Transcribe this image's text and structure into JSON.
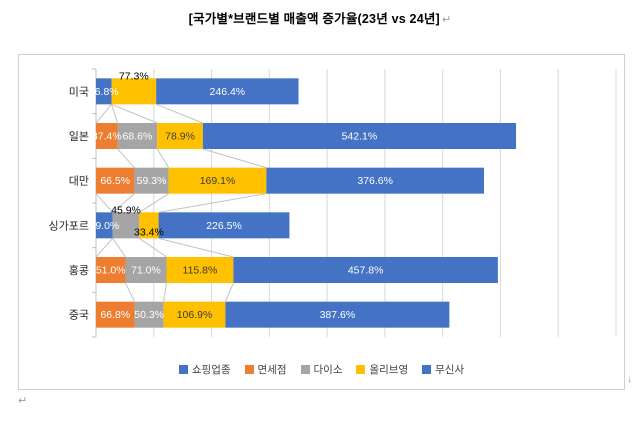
{
  "document": {
    "title": "[국가별*브랜드별 매출액 증가율(23년 vs 24년]",
    "paragraph_mark": "↵",
    "down_mark": "↓"
  },
  "chart_data": {
    "type": "bar",
    "stacked": true,
    "orientation": "horizontal",
    "title": "[국가별*브랜드별 매출액 증가율(23년 vs 24년]",
    "categories": [
      "미국",
      "일본",
      "대만",
      "싱가포르",
      "홍콩",
      "중국"
    ],
    "series": [
      {
        "name": "쇼핑업종",
        "color": "#4472C4",
        "label_color": "#FFFFFF",
        "values": [
          26.8,
          null,
          null,
          29.0,
          null,
          null
        ]
      },
      {
        "name": "면세점",
        "color": "#ED7D31",
        "label_color": "#FFFFFF",
        "values": [
          null,
          37.4,
          66.5,
          null,
          51.0,
          66.8
        ]
      },
      {
        "name": "다이소",
        "color": "#A5A5A5",
        "label_color": "#FFFFFF",
        "values": [
          null,
          68.6,
          59.3,
          45.9,
          71.0,
          50.3
        ]
      },
      {
        "name": "올리브영",
        "color": "#FFC000",
        "label_color": "#3B3B3B",
        "values": [
          77.3,
          78.9,
          169.1,
          33.4,
          115.8,
          106.9
        ]
      },
      {
        "name": "무신사",
        "color": "#4472C4",
        "label_color": "#FFFFFF",
        "values": [
          246.4,
          542.1,
          376.6,
          226.5,
          457.8,
          387.6
        ]
      }
    ],
    "value_suffix": "%",
    "axis": {
      "max": 900,
      "major_unit": 100,
      "gridlines": true,
      "tick_labels_visible": false
    },
    "legend": {
      "position": "bottom",
      "labels": [
        "쇼핑업종",
        "면세점",
        "다이소",
        "올리브영",
        "무신사"
      ]
    },
    "series_lines": true,
    "label_position_overrides": [
      {
        "category": "미국",
        "series": "올리브영",
        "pos": "above"
      },
      {
        "category": "싱가포르",
        "series": "다이소",
        "pos": "above"
      },
      {
        "category": "싱가포르",
        "series": "올리브영",
        "pos": "below"
      }
    ],
    "colors": {
      "gridline": "#D9D9D9",
      "axis_line": "#BFBFBF",
      "series_line": "#C3C3C3",
      "category_label": "#262626",
      "outside_label": "#000000"
    }
  }
}
